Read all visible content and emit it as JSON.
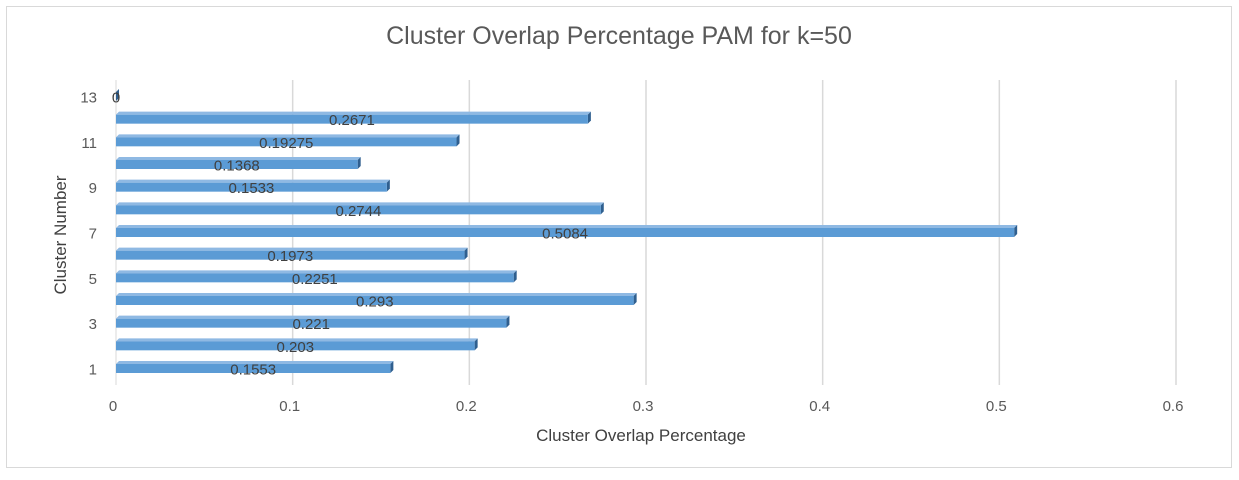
{
  "chart_data": {
    "type": "bar",
    "orientation": "horizontal",
    "title": "Cluster Overlap Percentage PAM for k=50",
    "xlabel": "Cluster Overlap Percentage",
    "ylabel": "Cluster Number",
    "categories": [
      "1",
      "2",
      "3",
      "4",
      "5",
      "6",
      "7",
      "8",
      "9",
      "10",
      "11",
      "12",
      "13"
    ],
    "y_tick_labels": [
      "1",
      "3",
      "5",
      "7",
      "9",
      "11",
      "13"
    ],
    "values": [
      0.1553,
      0.203,
      0.221,
      0.293,
      0.2251,
      0.1973,
      0.5084,
      0.2744,
      0.1533,
      0.1368,
      0.19275,
      0.2671,
      0
    ],
    "data_labels": [
      "0.1553",
      "0.203",
      "0.221",
      "0.293",
      "0.2251",
      "0.1973",
      "0.5084",
      "0.2744",
      "0.1533",
      "0.1368",
      "0.19275",
      "0.2671",
      "0"
    ],
    "xlim": [
      0,
      0.6
    ],
    "x_ticks": [
      0,
      0.1,
      0.2,
      0.3,
      0.4,
      0.5,
      0.6
    ],
    "x_tick_labels": [
      "0",
      "0.1",
      "0.2",
      "0.3",
      "0.4",
      "0.5",
      "0.6"
    ],
    "grid": true,
    "legend": "none",
    "bar_color": "#5B9BD5",
    "bar_edge_color": "#2F5F8F"
  }
}
